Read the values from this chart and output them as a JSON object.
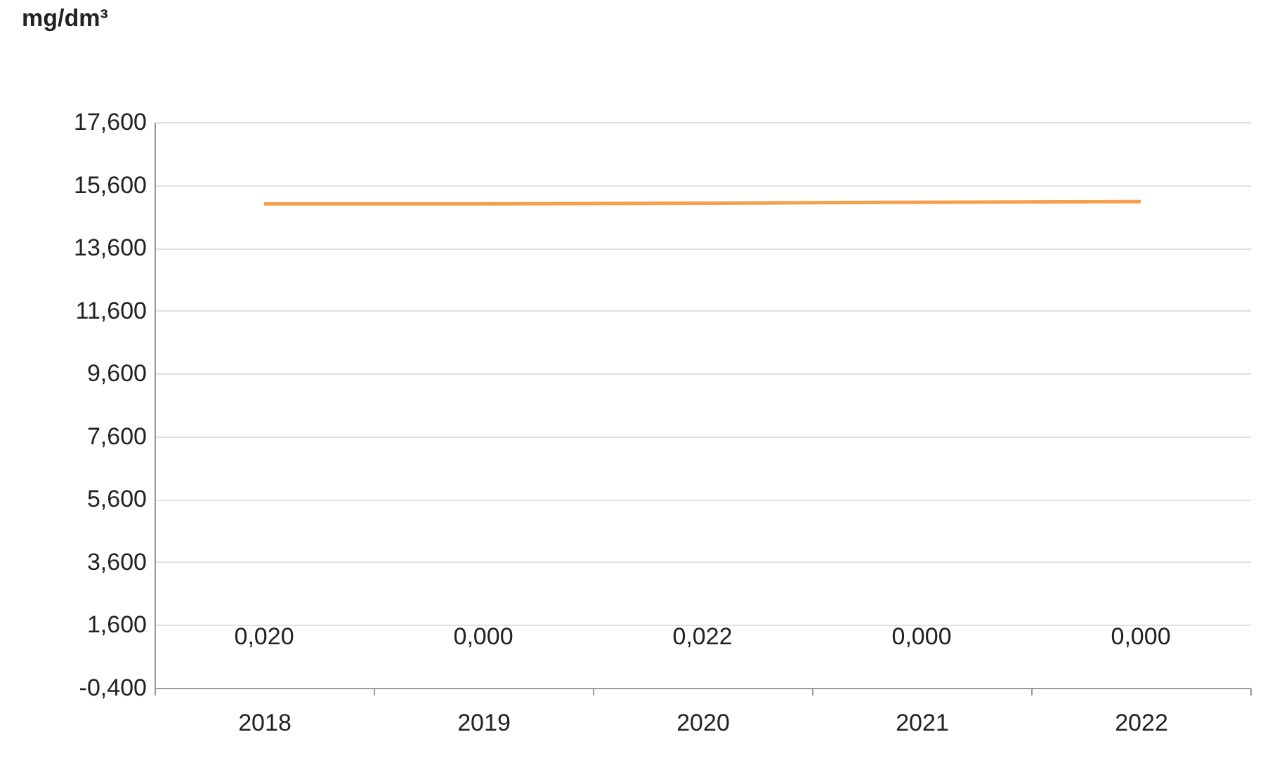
{
  "chart_data": {
    "type": "line",
    "ylabel": "mg/dm³",
    "categories": [
      "2018",
      "2019",
      "2020",
      "2021",
      "2022"
    ],
    "series": [
      {
        "color": "#f4a04c",
        "values": [
          15.0,
          15.0,
          15.02,
          15.05,
          15.07
        ]
      }
    ],
    "ylim": [
      -0.4,
      17.6
    ],
    "yticks": [
      {
        "value": -0.4,
        "label": "-0,400"
      },
      {
        "value": 1.6,
        "label": "1,600"
      },
      {
        "value": 3.6,
        "label": "3,600"
      },
      {
        "value": 5.6,
        "label": "5,600"
      },
      {
        "value": 7.6,
        "label": "7,600"
      },
      {
        "value": 9.6,
        "label": "9,600"
      },
      {
        "value": 11.6,
        "label": "11,600"
      },
      {
        "value": 13.6,
        "label": "13,600"
      },
      {
        "value": 15.6,
        "label": "15,600"
      },
      {
        "value": 17.6,
        "label": "17,600"
      }
    ],
    "annotations": [
      "0,020",
      "0,000",
      "0,022",
      "0,000",
      "0,000"
    ],
    "grid": "y",
    "marker": "none",
    "line_style": "solid"
  }
}
